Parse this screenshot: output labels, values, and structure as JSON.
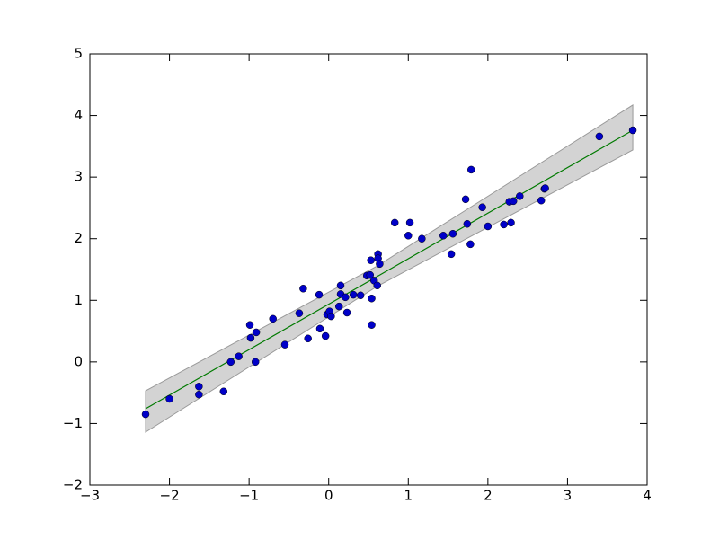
{
  "chart_data": {
    "type": "scatter",
    "x": [
      -2.3,
      -2.0,
      -1.63,
      -1.63,
      -1.32,
      -1.23,
      -1.13,
      -0.99,
      -0.98,
      -0.91,
      -0.92,
      -0.7,
      -0.55,
      -0.37,
      -0.32,
      -0.26,
      -0.12,
      -0.11,
      -0.04,
      -0.02,
      0.01,
      0.03,
      0.13,
      0.15,
      0.15,
      0.21,
      0.23,
      0.31,
      0.4,
      0.48,
      0.52,
      0.53,
      0.54,
      0.54,
      0.57,
      0.61,
      0.62,
      0.62,
      0.64,
      0.83,
      1.0,
      1.02,
      1.17,
      1.44,
      1.54,
      1.56,
      1.72,
      1.74,
      1.78,
      1.79,
      1.93,
      2.0,
      2.2,
      2.27,
      2.29,
      2.32,
      2.4,
      2.67,
      2.71,
      2.72,
      3.4,
      3.82
    ],
    "values": [
      -0.85,
      -0.6,
      -0.4,
      -0.53,
      -0.48,
      0.0,
      0.09,
      0.6,
      0.39,
      0.48,
      0.0,
      0.7,
      0.28,
      0.79,
      1.19,
      0.38,
      1.09,
      0.54,
      0.42,
      0.77,
      0.82,
      0.74,
      0.9,
      1.24,
      1.1,
      1.05,
      0.8,
      1.09,
      1.08,
      1.4,
      1.41,
      1.65,
      1.03,
      0.6,
      1.32,
      1.24,
      1.75,
      1.68,
      1.59,
      2.26,
      2.05,
      2.26,
      2.0,
      2.05,
      1.75,
      2.08,
      2.64,
      2.24,
      1.91,
      3.12,
      2.51,
      2.2,
      2.23,
      2.6,
      2.26,
      2.61,
      2.69,
      2.62,
      2.81,
      2.82,
      3.66,
      3.76
    ],
    "color": "#0000c8",
    "fit": {
      "x": [
        -2.3,
        0.6,
        3.82
      ],
      "values": [
        -0.76,
        1.38,
        3.76
      ],
      "lower": [
        -1.14,
        1.22,
        3.44
      ],
      "upper": [
        -0.47,
        1.55,
        4.17
      ],
      "color": "#007a00",
      "band_color": "#d3d3d3"
    },
    "xlim": [
      -3,
      4
    ],
    "xticks": [
      {
        "value": -3,
        "label": "−3"
      },
      {
        "value": -2,
        "label": "−2"
      },
      {
        "value": -1,
        "label": "−1"
      },
      0,
      1,
      2,
      3,
      4
    ],
    "ylim": [
      -2,
      5
    ],
    "yticks": [
      {
        "value": -2,
        "label": "−2"
      },
      {
        "value": -1,
        "label": "−1"
      },
      0,
      1,
      2,
      3,
      4,
      5
    ]
  }
}
